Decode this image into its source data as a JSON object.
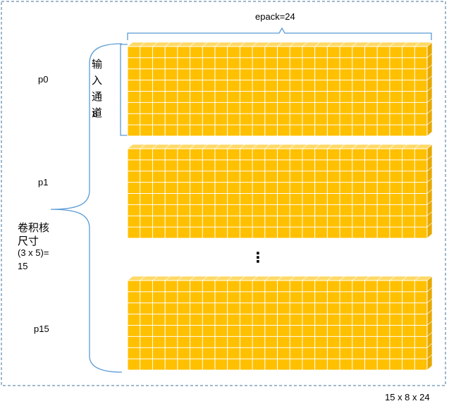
{
  "labels": {
    "epack": "epack=24",
    "input_channel_lines": [
      "输",
      "入",
      "通",
      "道"
    ],
    "input_channel_value": "8",
    "kernel_lines": [
      "卷积核",
      "尺寸"
    ],
    "kernel_formula": "(3 x 5)=",
    "kernel_value": "15",
    "caption": "15 x 8 x 24"
  },
  "packs": [
    {
      "label": "p0"
    },
    {
      "label": "p1"
    },
    {
      "label": "p15"
    }
  ],
  "ellipsis": "⋮",
  "block": {
    "columns": 24,
    "rows": 8
  },
  "colors": {
    "cube_face": "#FFC000",
    "cube_top": "#FFD966",
    "cube_side": "#E6A800",
    "cube_edge": "#FFFFFF",
    "bracket": "#5B9BD5",
    "border": "#41719C"
  }
}
